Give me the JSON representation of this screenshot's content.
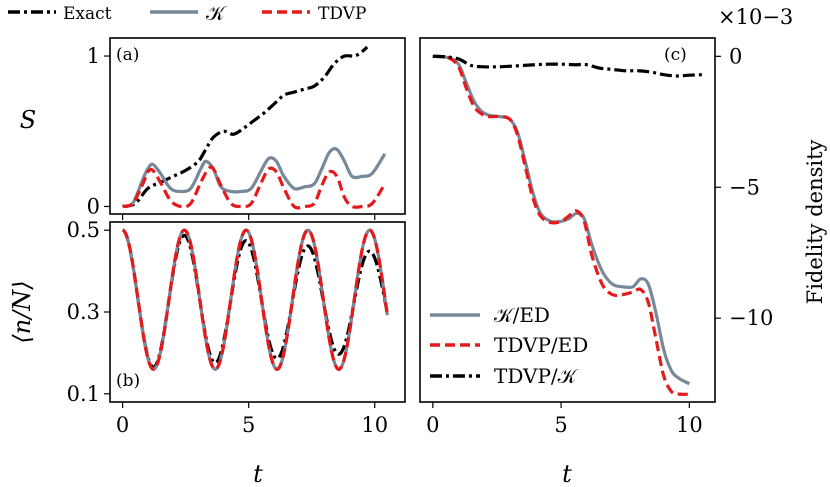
{
  "chart_data": [
    {
      "id": "a",
      "type": "line",
      "panel_label": "(a)",
      "ylabel": "S",
      "xlim": [
        -0.5,
        11.2
      ],
      "ylim": [
        -0.05,
        1.12
      ],
      "yticks": [
        0,
        1
      ],
      "ytick_labels": [
        "0",
        "1"
      ],
      "series": [
        {
          "name": "Exact",
          "color": "#000000",
          "style": "dashdot",
          "x": [
            0,
            0.5,
            1.0,
            1.5,
            2.0,
            2.5,
            3.0,
            3.3,
            3.6,
            4.0,
            4.4,
            4.8,
            5.2,
            5.6,
            6.0,
            6.4,
            6.8,
            7.2,
            7.6,
            8.0,
            8.4,
            8.8,
            9.2,
            9.5,
            9.7
          ],
          "y": [
            0.0,
            0.02,
            0.12,
            0.16,
            0.2,
            0.24,
            0.3,
            0.38,
            0.46,
            0.5,
            0.48,
            0.52,
            0.57,
            0.62,
            0.68,
            0.74,
            0.76,
            0.78,
            0.8,
            0.86,
            0.95,
            1.0,
            1.0,
            1.03,
            1.06
          ]
        },
        {
          "name": "K",
          "color": "#778899",
          "style": "solid",
          "x": [
            0,
            0.4,
            0.8,
            1.0,
            1.2,
            1.5,
            1.9,
            2.3,
            2.7,
            3.1,
            3.3,
            3.6,
            3.9,
            4.3,
            4.7,
            5.1,
            5.5,
            5.8,
            6.1,
            6.4,
            6.8,
            7.2,
            7.6,
            7.9,
            8.2,
            8.5,
            8.8,
            9.1,
            9.5,
            9.9,
            10.4
          ],
          "y": [
            0.0,
            0.02,
            0.18,
            0.25,
            0.28,
            0.22,
            0.12,
            0.1,
            0.12,
            0.25,
            0.3,
            0.25,
            0.13,
            0.1,
            0.1,
            0.12,
            0.24,
            0.32,
            0.3,
            0.2,
            0.12,
            0.13,
            0.15,
            0.25,
            0.36,
            0.38,
            0.3,
            0.2,
            0.2,
            0.22,
            0.35
          ]
        },
        {
          "name": "TDVP",
          "color": "#e8191a",
          "style": "dashed",
          "x": [
            0,
            0.4,
            0.8,
            1.0,
            1.2,
            1.5,
            1.9,
            2.3,
            2.7,
            3.1,
            3.4,
            3.6,
            3.9,
            4.3,
            4.7,
            5.1,
            5.5,
            5.8,
            6.1,
            6.4,
            6.8,
            7.2,
            7.6,
            7.9,
            8.2,
            8.5,
            8.8,
            9.1,
            9.5,
            9.9,
            10.4
          ],
          "y": [
            0.0,
            0.02,
            0.15,
            0.23,
            0.24,
            0.16,
            0.04,
            0.0,
            0.02,
            0.16,
            0.25,
            0.25,
            0.14,
            0.02,
            0.0,
            0.02,
            0.16,
            0.25,
            0.23,
            0.12,
            0.0,
            0.0,
            0.02,
            0.14,
            0.23,
            0.2,
            0.06,
            0.0,
            0.0,
            0.02,
            0.15
          ]
        }
      ]
    },
    {
      "id": "b",
      "type": "line",
      "panel_label": "(b)",
      "ylabel": "⟨n/N⟩",
      "xlabel": "t",
      "xlim": [
        -0.5,
        11.2
      ],
      "ylim": [
        0.08,
        0.52
      ],
      "xticks": [
        0,
        5,
        10
      ],
      "xtick_labels": [
        "0",
        "5",
        "10"
      ],
      "yticks": [
        0.5,
        0.3,
        0.1
      ],
      "ytick_labels": [
        "0.5",
        "0.3",
        "0.1"
      ],
      "series": [
        {
          "name": "Exact",
          "color": "#000000",
          "style": "dashdot",
          "kind": "osc",
          "amp_start": 0.17,
          "amp_end": 0.12,
          "center_start": 0.33,
          "center_end": 0.325,
          "period": 2.45,
          "t_max": 10.5
        },
        {
          "name": "K",
          "color": "#778899",
          "style": "solid",
          "kind": "osc",
          "amp_start": 0.17,
          "amp_end": 0.17,
          "center_start": 0.33,
          "center_end": 0.33,
          "period": 2.45,
          "t_max": 10.5
        },
        {
          "name": "TDVP",
          "color": "#e8191a",
          "style": "dashed",
          "kind": "osc",
          "amp_start": 0.17,
          "amp_end": 0.17,
          "center_start": 0.33,
          "center_end": 0.33,
          "period": 2.45,
          "t_max": 10.5
        }
      ]
    },
    {
      "id": "c",
      "type": "line",
      "panel_label": "(c)",
      "ylabel": "Fidelity density",
      "xlabel": "t",
      "scale_label": "×10−3",
      "xlim": [
        -0.5,
        11.0
      ],
      "ylim": [
        -13.2,
        0.7
      ],
      "xticks": [
        0,
        5,
        10
      ],
      "xtick_labels": [
        "0",
        "5",
        "10"
      ],
      "yticks": [
        0,
        -5,
        -10
      ],
      "ytick_labels": [
        "0",
        "−5",
        "−10"
      ],
      "series": [
        {
          "name": "K/ED",
          "color": "#778899",
          "style": "solid",
          "x": [
            0,
            0.6,
            1.0,
            1.3,
            1.6,
            1.9,
            2.2,
            2.6,
            3.0,
            3.3,
            3.6,
            3.9,
            4.2,
            4.6,
            5.0,
            5.3,
            5.6,
            5.9,
            6.2,
            6.6,
            7.0,
            7.4,
            7.8,
            8.1,
            8.4,
            8.7,
            9.0,
            9.3,
            9.6,
            10.0
          ],
          "y": [
            0,
            -0.05,
            -0.3,
            -1.0,
            -1.7,
            -2.1,
            -2.25,
            -2.3,
            -2.4,
            -2.9,
            -4.0,
            -5.2,
            -6.0,
            -6.3,
            -6.3,
            -6.2,
            -6.0,
            -6.2,
            -7.2,
            -8.2,
            -8.7,
            -8.8,
            -8.8,
            -8.5,
            -8.7,
            -9.8,
            -11.2,
            -12.0,
            -12.3,
            -12.5
          ]
        },
        {
          "name": "TDVP/ED",
          "color": "#e8191a",
          "style": "dashed",
          "x": [
            0,
            0.6,
            1.0,
            1.3,
            1.6,
            1.9,
            2.2,
            2.6,
            3.0,
            3.3,
            3.6,
            3.9,
            4.2,
            4.6,
            5.0,
            5.3,
            5.6,
            5.9,
            6.2,
            6.6,
            7.0,
            7.4,
            7.8,
            8.1,
            8.4,
            8.7,
            9.0,
            9.3,
            9.6,
            10.0
          ],
          "y": [
            0,
            -0.05,
            -0.4,
            -1.2,
            -1.9,
            -2.2,
            -2.3,
            -2.3,
            -2.4,
            -3.0,
            -4.2,
            -5.4,
            -6.1,
            -6.35,
            -6.3,
            -6.1,
            -5.9,
            -6.3,
            -7.6,
            -8.7,
            -9.1,
            -9.1,
            -9.0,
            -8.9,
            -9.4,
            -10.8,
            -12.2,
            -12.8,
            -12.9,
            -12.9
          ]
        },
        {
          "name": "TDVP/K",
          "color": "#000000",
          "style": "dashdot",
          "x": [
            0,
            0.5,
            1.0,
            1.5,
            2.0,
            2.5,
            3.0,
            3.5,
            4.0,
            4.5,
            5.0,
            5.5,
            6.0,
            6.5,
            7.0,
            7.5,
            8.0,
            8.5,
            9.0,
            9.5,
            10.0,
            10.5
          ],
          "y": [
            0,
            -0.02,
            -0.1,
            -0.35,
            -0.4,
            -0.4,
            -0.38,
            -0.35,
            -0.32,
            -0.3,
            -0.3,
            -0.32,
            -0.32,
            -0.45,
            -0.5,
            -0.55,
            -0.55,
            -0.6,
            -0.7,
            -0.75,
            -0.72,
            -0.7
          ]
        }
      ]
    }
  ],
  "legend_top": {
    "exact": "Exact",
    "k": "𝒦",
    "tdvp": "TDVP"
  },
  "legend_c": {
    "k_ed": "𝒦/ED",
    "tdvp_ed": "TDVP/ED",
    "tdvp_k": "TDVP/𝒦"
  }
}
